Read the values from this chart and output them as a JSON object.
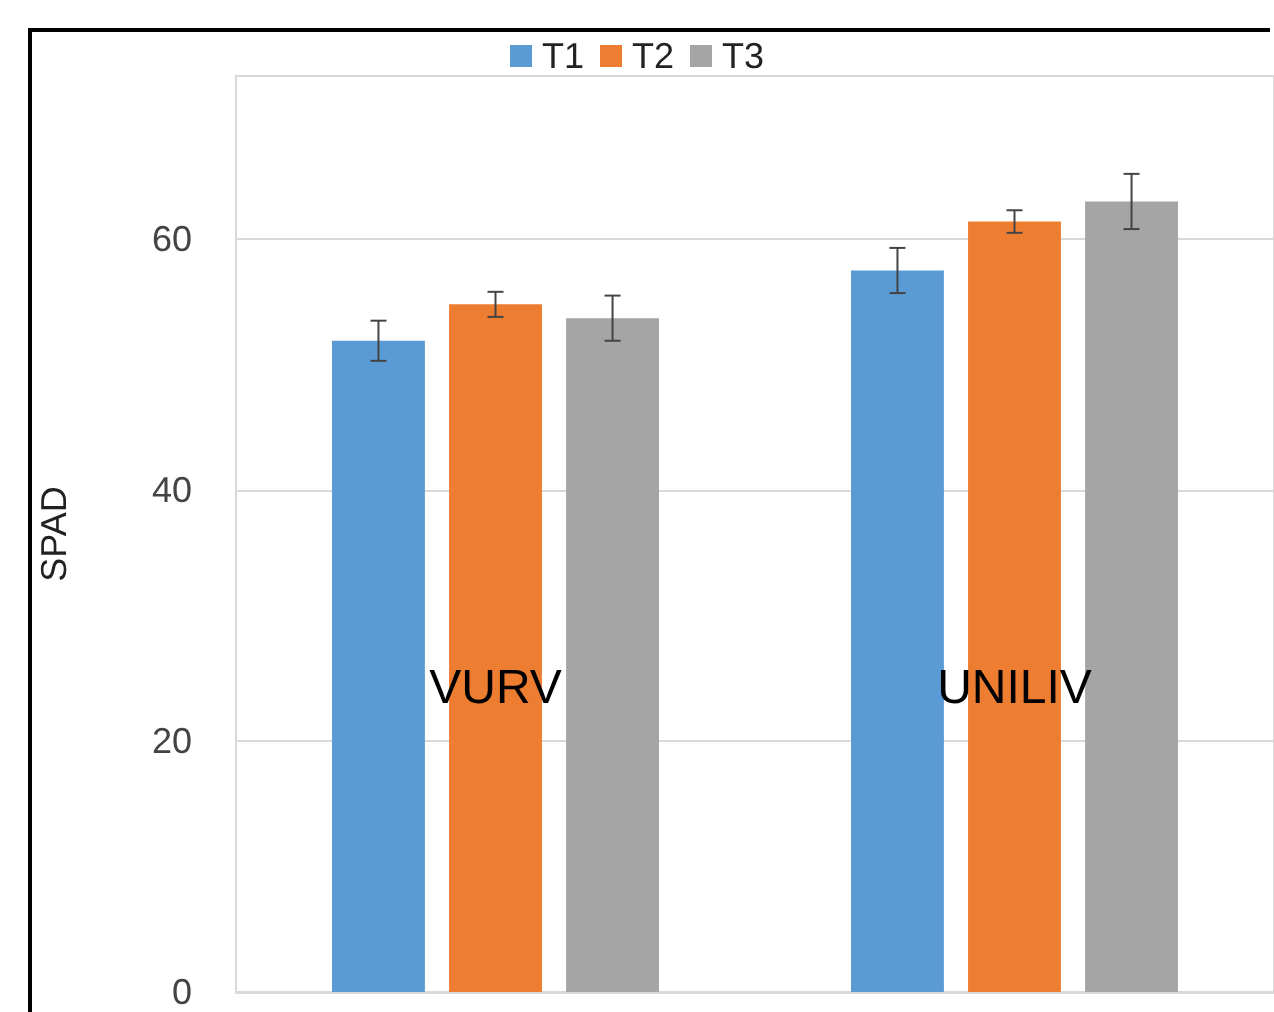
{
  "chart_data": {
    "type": "bar",
    "ylabel": "SPAD",
    "categories": [
      "VURV",
      "UNILIV"
    ],
    "series": [
      {
        "name": "T1",
        "color": "#5b9bd5",
        "values": [
          51.9,
          57.5
        ],
        "errors": [
          1.6,
          1.8
        ]
      },
      {
        "name": "T2",
        "color": "#ed7d31",
        "values": [
          54.8,
          61.4
        ],
        "errors": [
          1.0,
          0.9
        ]
      },
      {
        "name": "T3",
        "color": "#a5a5a5",
        "values": [
          53.7,
          63.0
        ],
        "errors": [
          1.8,
          2.2
        ]
      }
    ],
    "ylim": [
      0,
      73
    ],
    "yticks": [
      0,
      20,
      40,
      60
    ],
    "grid": "y",
    "legend": "top"
  }
}
